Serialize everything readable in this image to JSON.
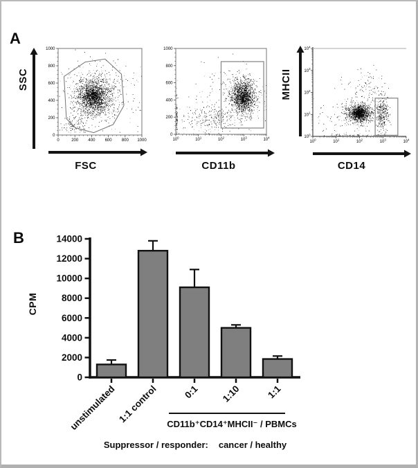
{
  "figure": {
    "panel_a_label": "A",
    "panel_b_label": "B"
  },
  "chart_data": [
    {
      "type": "scatter",
      "name": "fsc-ssc-dot-plot",
      "xlabel": "FSC",
      "ylabel": "SSC",
      "xscale": "linear",
      "yscale": "linear",
      "xlim": [
        0,
        1000
      ],
      "ylim": [
        0,
        1000
      ],
      "xticks": [
        0,
        200,
        400,
        600,
        800,
        1000
      ],
      "yticks": [
        0,
        200,
        400,
        600,
        800,
        1000
      ],
      "gate_polygon": [
        [
          426,
          27
        ],
        [
          210,
          81
        ],
        [
          98,
          189
        ],
        [
          70,
          676
        ],
        [
          322,
          843
        ],
        [
          560,
          878
        ],
        [
          756,
          703
        ],
        [
          784,
          338
        ],
        [
          658,
          122
        ]
      ],
      "clusters": [
        {
          "x": 420,
          "y": 460,
          "sx": 115,
          "sy": 115,
          "n": 1350
        },
        {
          "x": 420,
          "y": 450,
          "sx": 55,
          "sy": 55,
          "n": 650
        },
        {
          "x": 430,
          "y": 320,
          "sx": 150,
          "sy": 55,
          "n": 170
        },
        {
          "x": 185,
          "y": 115,
          "sx": 65,
          "sy": 55,
          "n": 110
        },
        {
          "x": 500,
          "y": 500,
          "sx": 260,
          "sy": 240,
          "n": 260
        }
      ]
    },
    {
      "type": "scatter",
      "name": "cd11b-ssc-dot-plot",
      "xlabel": "CD11b",
      "ylabel": "",
      "xscale": "log",
      "yscale": "linear",
      "xlim_exp": [
        0,
        4
      ],
      "ylim": [
        0,
        1000
      ],
      "xticks_exp": [
        0,
        1,
        2,
        3,
        4
      ],
      "yticks": [
        0,
        200,
        400,
        600,
        800,
        1000
      ],
      "gate_rect": {
        "x1": 2.0,
        "x2": 3.88,
        "y1": 73,
        "y2": 847
      },
      "clusters": [
        {
          "x": 2.95,
          "y": 440,
          "sx": 0.33,
          "sy": 115,
          "n": 1150
        },
        {
          "x": 2.95,
          "y": 430,
          "sx": 0.18,
          "sy": 60,
          "n": 550
        },
        {
          "x": 1.55,
          "y": 175,
          "sx": 0.55,
          "sy": 75,
          "n": 230
        },
        {
          "x": 0.03,
          "y": 185,
          "sx": 0.02,
          "sy": 95,
          "n": 70
        },
        {
          "x": 2.0,
          "y": 400,
          "sx": 1.1,
          "sy": 230,
          "n": 120
        }
      ]
    },
    {
      "type": "scatter",
      "name": "cd14-mhcii-dot-plot",
      "xlabel": "CD14",
      "ylabel": "MHCII",
      "xscale": "log",
      "yscale": "log",
      "xlim_exp": [
        0,
        4
      ],
      "ylim_exp": [
        0,
        4
      ],
      "xticks_exp": [
        0,
        1,
        2,
        3,
        4
      ],
      "yticks_exp": [
        0,
        1,
        2,
        3,
        4
      ],
      "gate_rect": {
        "x1": 2.67,
        "x2": 3.64,
        "y1": 0.05,
        "y2": 1.74
      },
      "clusters": [
        {
          "x": 1.98,
          "y": 1.05,
          "sx": 0.27,
          "sy": 0.22,
          "n": 950
        },
        {
          "x": 1.98,
          "y": 1.05,
          "sx": 0.14,
          "sy": 0.12,
          "n": 500
        },
        {
          "x": 2.97,
          "y": 1.05,
          "sx": 0.13,
          "sy": 0.38,
          "n": 340
        },
        {
          "x": 2.35,
          "y": 2.1,
          "sx": 0.45,
          "sy": 0.5,
          "n": 120
        },
        {
          "x": 1.7,
          "y": 0.05,
          "sx": 0.5,
          "sy": 0.03,
          "n": 45
        },
        {
          "x": 1.2,
          "y": 0.9,
          "sx": 0.55,
          "sy": 0.45,
          "n": 90
        }
      ]
    },
    {
      "type": "bar",
      "name": "t-cell-suppression-assay",
      "ylabel": "CPM",
      "categories": [
        "unstimulated",
        "1:1 control",
        "0:1",
        "1:10",
        "1:1"
      ],
      "values": [
        1300,
        12800,
        9100,
        5000,
        1850
      ],
      "errors_upper": [
        450,
        1000,
        1800,
        300,
        300
      ],
      "ylim": [
        0,
        14000
      ],
      "yticks": [
        0,
        2000,
        4000,
        6000,
        8000,
        10000,
        12000,
        14000
      ],
      "bar_color": "#7f7f7f",
      "group_bracket_categories": [
        "0:1",
        "1:10",
        "1:1"
      ],
      "group_label": "CD11b⁺CD14⁺MHCII⁻ / PBMCs",
      "footer_label": "Suppressor / responder:",
      "footer_value": "cancer / healthy"
    }
  ]
}
